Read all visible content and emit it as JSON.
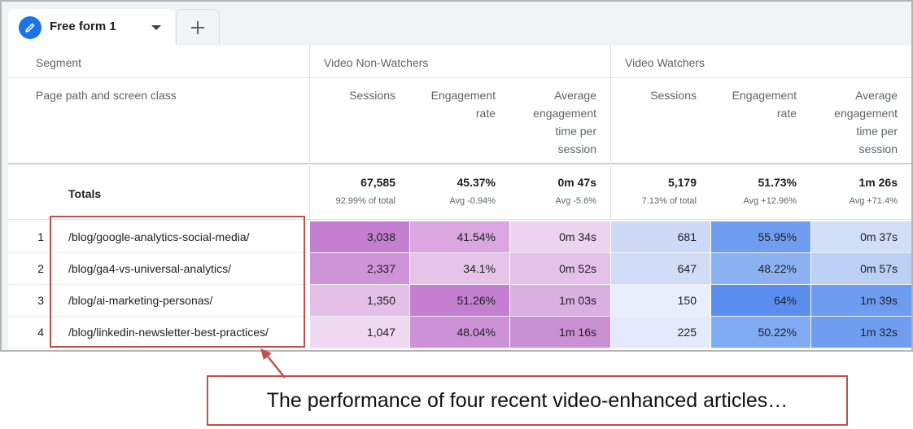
{
  "tab": {
    "label": "Free form 1",
    "icon": "pencil-icon",
    "add_icon": "plus-icon"
  },
  "header": {
    "segment_label": "Segment",
    "dimension_label": "Page path and screen class",
    "segments": [
      "Video Non-Watchers",
      "Video Watchers"
    ],
    "metrics": [
      "Sessions",
      "Engagement rate",
      "Average engagement time per session"
    ],
    "metric_lines": [
      [
        "Sessions"
      ],
      [
        "Engagement",
        "rate"
      ],
      [
        "Average",
        "engagement",
        "time per",
        "session"
      ]
    ]
  },
  "totals": {
    "label": "Totals",
    "cells": [
      {
        "main": "67,585",
        "sub": "92.99% of total"
      },
      {
        "main": "45.37%",
        "sub": "Avg -0.94%"
      },
      {
        "main": "0m 47s",
        "sub": "Avg -5.6%"
      },
      {
        "main": "5,179",
        "sub": "7.13% of total"
      },
      {
        "main": "51.73%",
        "sub": "Avg +12.96%"
      },
      {
        "main": "1m 26s",
        "sub": "Avg +71.4%"
      }
    ]
  },
  "rows": [
    {
      "num": "1",
      "path": "/blog/google-analytics-social-media/",
      "values": [
        "3,038",
        "41.54%",
        "0m 34s",
        "681",
        "55.95%",
        "0m 37s"
      ]
    },
    {
      "num": "2",
      "path": "/blog/ga4-vs-universal-analytics/",
      "values": [
        "2,337",
        "34.1%",
        "0m 52s",
        "647",
        "48.22%",
        "0m 57s"
      ]
    },
    {
      "num": "3",
      "path": "/blog/ai-marketing-personas/",
      "values": [
        "1,350",
        "51.26%",
        "1m 03s",
        "150",
        "64%",
        "1m 39s"
      ]
    },
    {
      "num": "4",
      "path": "/blog/linkedin-newsletter-best-practices/",
      "values": [
        "1,047",
        "48.04%",
        "1m 16s",
        "225",
        "50.22%",
        "1m 32s"
      ]
    }
  ],
  "cell_colors": [
    [
      "#c47fd0",
      "#d9a6df",
      "#ecd3ef",
      "#ccd9f7",
      "#6f9ef0",
      "#d1def7"
    ],
    [
      "#cf94d8",
      "#e6c4ea",
      "#e4c1e8",
      "#d1ddf7",
      "#8cb2f3",
      "#bcd0f5"
    ],
    [
      "#e4c0e8",
      "#c47fd0",
      "#dab0e1",
      "#e8eefb",
      "#5b8fef",
      "#6d9cf0"
    ],
    [
      "#eed9f1",
      "#cd91d7",
      "#c990d4",
      "#e2eafb",
      "#80aaf2",
      "#6f9ef0"
    ]
  ],
  "caption": "The performance of four recent video-enhanced articles…",
  "colors": {
    "accent": "#1a73e8",
    "annotation": "#c0504d"
  }
}
